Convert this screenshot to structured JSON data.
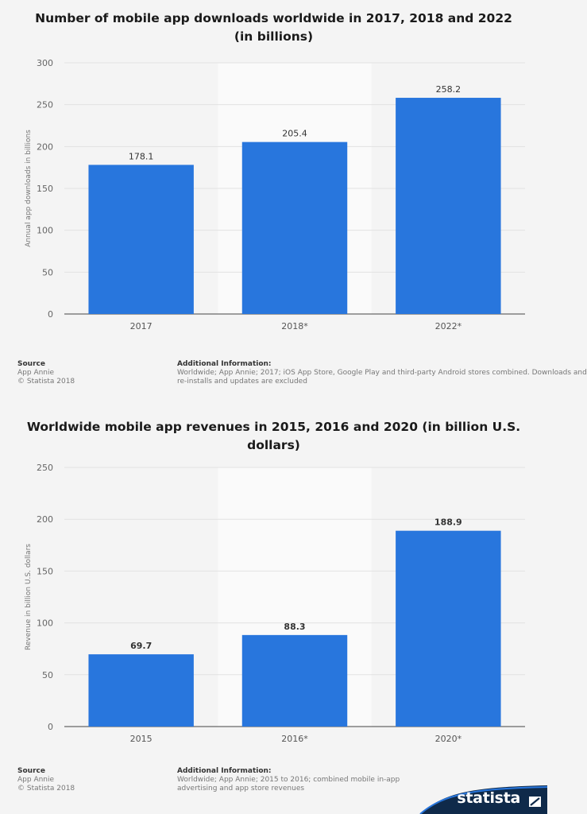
{
  "panels": [
    {
      "title_line1": "Number of mobile app downloads worldwide in 2017, 2018 and 2022",
      "title_line2": "(in billions)",
      "source_heading": "Source",
      "source_name": "App Annie",
      "copyright": "© Statista 2018",
      "info_heading": "Additional Information:",
      "info_line1": "Worldwide; App Annie; 2017; iOS App Store, Google Play and third-party Android stores combined. Downloads and",
      "info_line2": "re-installs and updates are excluded"
    },
    {
      "title_line1": "Worldwide mobile app revenues in 2015, 2016 and 2020 (in billion U.S.",
      "title_line2": "dollars)",
      "source_heading": "Source",
      "source_name": "App Annie",
      "copyright": "© Statista 2018",
      "info_heading": "Additional Information:",
      "info_line1": "Worldwide; App Annie; 2015 to 2016; combined mobile in-app",
      "info_line2": "advertising and app store revenues"
    }
  ],
  "brand": {
    "name": "statista"
  },
  "colors": {
    "bar": "#2876dd",
    "background": "#f4f4f4",
    "highlight_band": "#fafafa",
    "brand": "#0f2a4a"
  },
  "chart_data": [
    {
      "type": "bar",
      "title": "Number of mobile app downloads worldwide in 2017, 2018 and 2022 (in billions)",
      "categories": [
        "2017",
        "2018*",
        "2022*"
      ],
      "values": [
        178.1,
        205.4,
        258.2
      ],
      "value_labels": [
        "178.1",
        "205.4",
        "258.2"
      ],
      "xlabel": "",
      "ylabel": "Annual app downloads in billions",
      "ylim": [
        0,
        300
      ],
      "yticks": [
        0,
        50,
        100,
        150,
        200,
        250,
        300
      ],
      "grid": true,
      "bold_labels": false
    },
    {
      "type": "bar",
      "title": "Worldwide mobile app revenues in 2015, 2016 and 2020 (in billion U.S. dollars)",
      "categories": [
        "2015",
        "2016*",
        "2020*"
      ],
      "values": [
        69.7,
        88.3,
        188.9
      ],
      "value_labels": [
        "69.7",
        "88.3",
        "188.9"
      ],
      "xlabel": "",
      "ylabel": "Revenue in billion U.S. dollars",
      "ylim": [
        0,
        250
      ],
      "yticks": [
        0,
        50,
        100,
        150,
        200,
        250
      ],
      "grid": true,
      "bold_labels": true
    }
  ]
}
